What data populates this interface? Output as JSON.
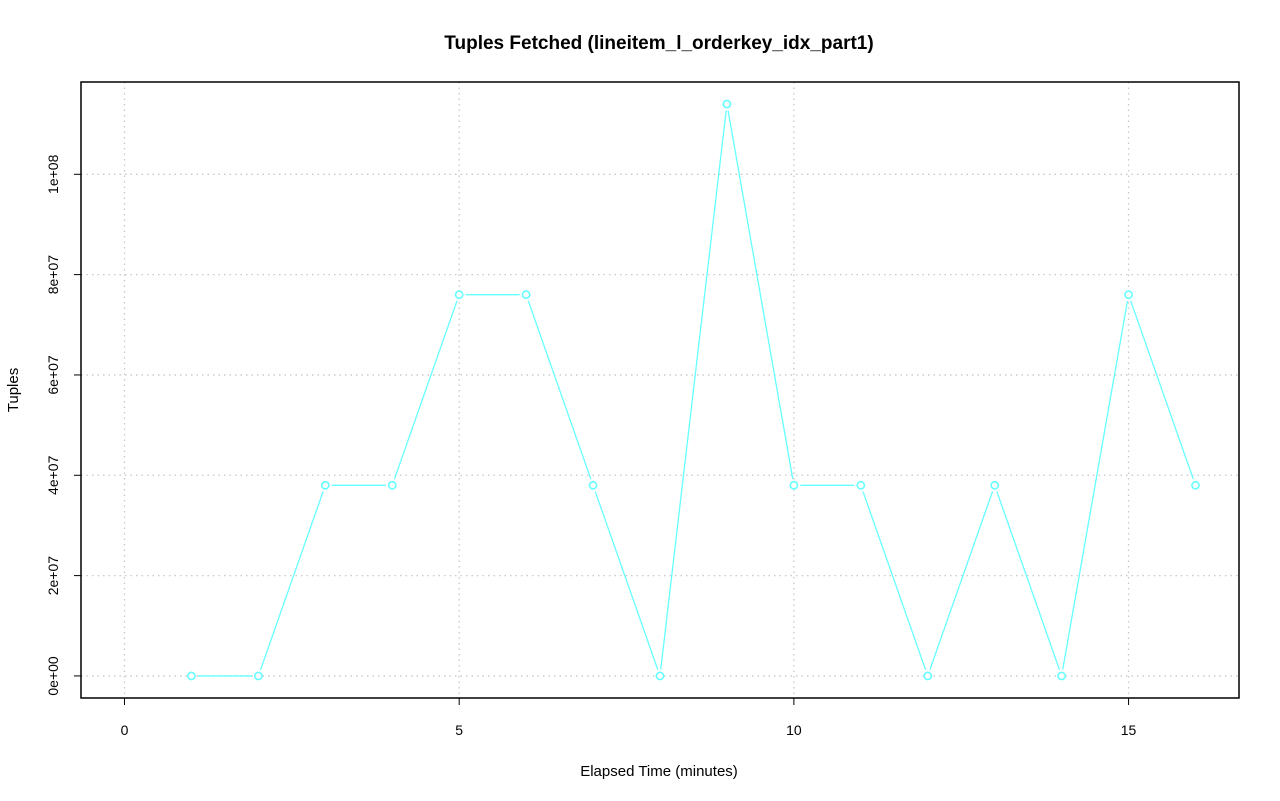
{
  "chart_data": {
    "type": "line",
    "title": "Tuples Fetched (lineitem_l_orderkey_idx_part1)",
    "xlabel": "Elapsed Time (minutes)",
    "ylabel": "Tuples",
    "x": [
      1,
      2,
      3,
      4,
      5,
      6,
      7,
      8,
      9,
      10,
      11,
      12,
      13,
      14,
      15,
      16
    ],
    "series": [
      {
        "values": [
          0,
          0,
          38000000,
          38000000,
          76000000,
          76000000,
          38000000,
          0,
          114000000,
          38000000,
          38000000,
          0,
          38000000,
          0,
          76000000,
          38000000
        ],
        "color": "#66ffff"
      }
    ],
    "xlim": [
      -0.65,
      16.65
    ],
    "ylim": [
      -4400000,
      118400000
    ],
    "xticks": [
      0,
      5,
      10,
      15
    ],
    "xtick_labels": [
      "0",
      "5",
      "10",
      "15"
    ],
    "yticks": [
      0,
      20000000,
      40000000,
      60000000,
      80000000,
      100000000
    ],
    "ytick_labels": [
      "0e+00",
      "2e+07",
      "4e+07",
      "6e+07",
      "8e+07",
      "1e+08"
    ],
    "grid": true,
    "marker": "open-circle"
  }
}
